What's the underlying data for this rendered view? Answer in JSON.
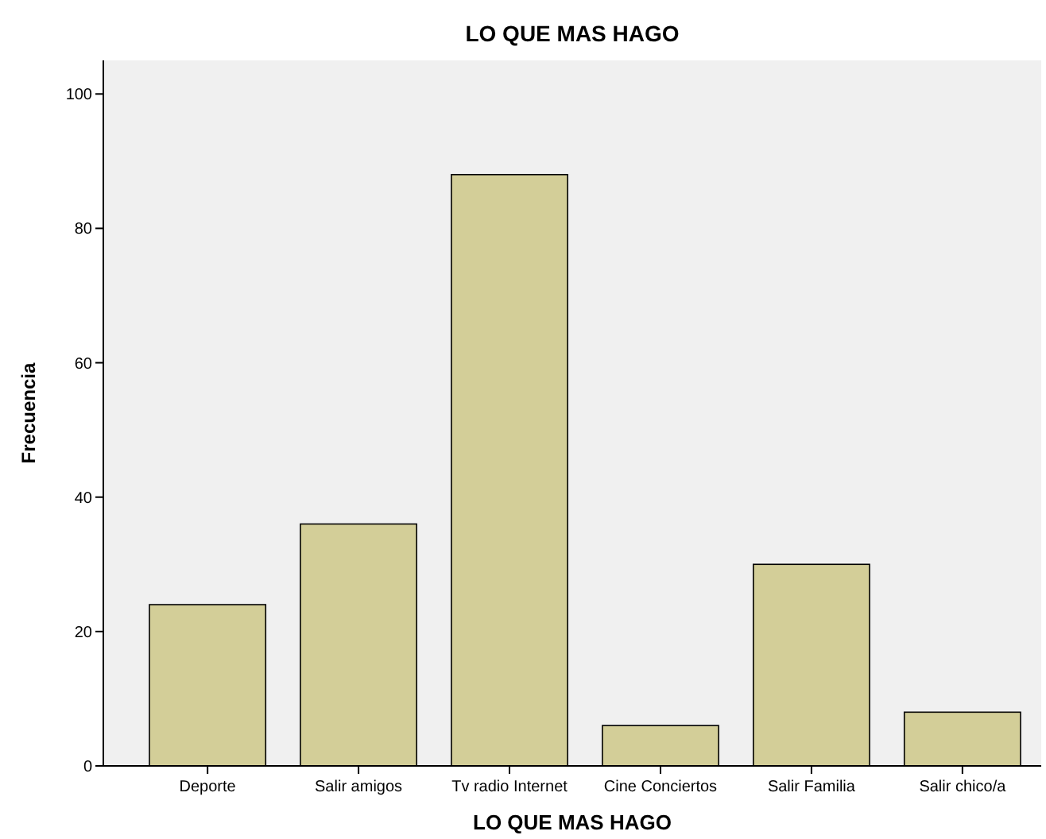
{
  "chart_data": {
    "type": "bar",
    "title": "LO QUE MAS HAGO",
    "xlabel": "LO QUE MAS HAGO",
    "ylabel": "Frecuencia",
    "categories": [
      "Deporte",
      "Salir amigos",
      "Tv radio Internet",
      "Cine Conciertos",
      "Salir Familia",
      "Salir chico/a"
    ],
    "values": [
      24,
      36,
      88,
      6,
      30,
      8
    ],
    "color": "#d3ce98",
    "ylim": [
      0,
      105
    ],
    "yticks": [
      0,
      20,
      40,
      60,
      80,
      100
    ],
    "grid": false
  }
}
